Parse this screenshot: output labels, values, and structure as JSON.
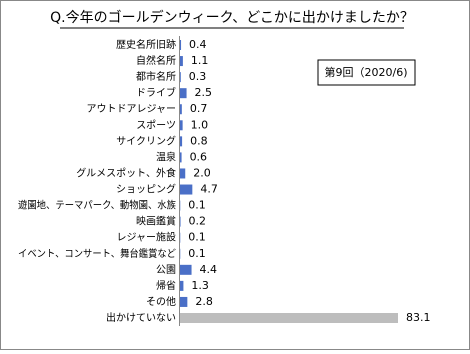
{
  "chart_data": {
    "type": "bar",
    "orientation": "horizontal",
    "title": "Q.今年のゴールデンウィーク、どこかに出かけましたか？",
    "annotation": "第9回（2020/6)",
    "categories": [
      "歴史名所旧跡",
      "自然名所",
      "都市名所",
      "ドライブ",
      "アウトドアレジャー",
      "スポーツ",
      "サイクリング",
      "温泉",
      "グルメスポット、外食",
      "ショッピング",
      "遊園地、テーマパーク、動物園、水族",
      "映画鑑賞",
      "レジャー施設",
      "イベント、コンサート、舞台鑑賞など",
      "公園",
      "帰省",
      "その他",
      "出かけていない"
    ],
    "values": [
      0.4,
      1.1,
      0.3,
      2.5,
      0.7,
      1.0,
      0.8,
      0.6,
      2.0,
      4.7,
      0.1,
      0.2,
      0.1,
      0.1,
      4.4,
      1.3,
      2.8,
      83.1
    ],
    "value_labels": [
      "0.4",
      "1.1",
      "0.3",
      "2.5",
      "0.7",
      "1.0",
      "0.8",
      "0.6",
      "2.0",
      "4.7",
      "0.1",
      "0.2",
      "0.1",
      "0.1",
      "4.4",
      "1.3",
      "2.8",
      "83.1"
    ],
    "colors": [
      "#4a6fc7",
      "#4a6fc7",
      "#4a6fc7",
      "#4a6fc7",
      "#4a6fc7",
      "#4a6fc7",
      "#4a6fc7",
      "#4a6fc7",
      "#4a6fc7",
      "#4a6fc7",
      "#4a6fc7",
      "#4a6fc7",
      "#4a6fc7",
      "#4a6fc7",
      "#4a6fc7",
      "#4a6fc7",
      "#4a6fc7",
      "#bdbdbd"
    ]
  }
}
